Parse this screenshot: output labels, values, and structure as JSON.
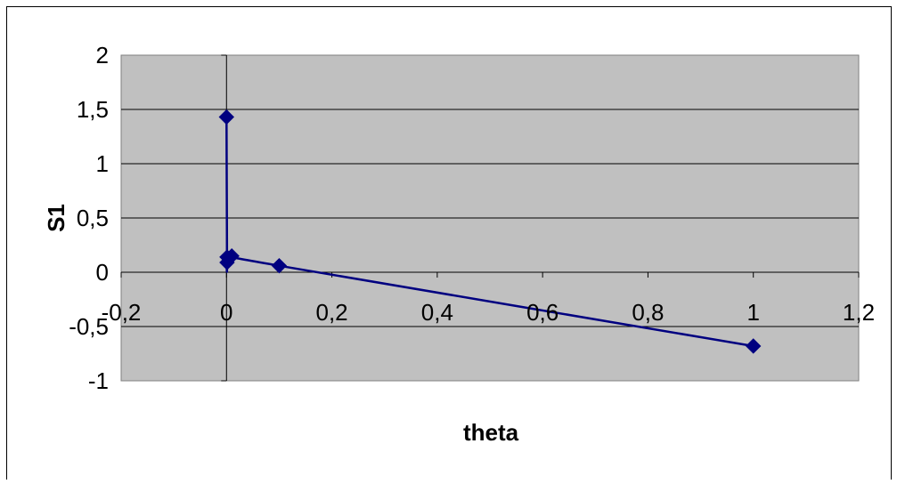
{
  "chart_data": {
    "type": "scatter",
    "title": "",
    "xlabel": "theta",
    "ylabel": "S1",
    "xlim": [
      -0.2,
      1.2
    ],
    "ylim": [
      -1,
      2
    ],
    "xticks": [
      -0.2,
      0,
      0.2,
      0.4,
      0.6,
      0.8,
      1,
      1.2
    ],
    "xtick_labels": [
      "-0,2",
      "0",
      "0,2",
      "0,4",
      "0,6",
      "0,8",
      "1",
      "1,2"
    ],
    "yticks": [
      2,
      1.5,
      1,
      0.5,
      0,
      -0.5,
      -1
    ],
    "ytick_labels": [
      "2",
      "1,5",
      "1",
      "0,5",
      "0",
      "-0,5",
      "-1"
    ],
    "grid": true,
    "legend": "none",
    "plot_background": "#c0c0c0",
    "series_color": "#000080",
    "series": [
      {
        "x": [
          0,
          0.001,
          0.001,
          0.01,
          0.1,
          1
        ],
        "y": [
          1.43,
          0.09,
          0.14,
          0.15,
          0.06,
          -0.68
        ],
        "marker": "diamond",
        "line": "smooth"
      }
    ]
  }
}
